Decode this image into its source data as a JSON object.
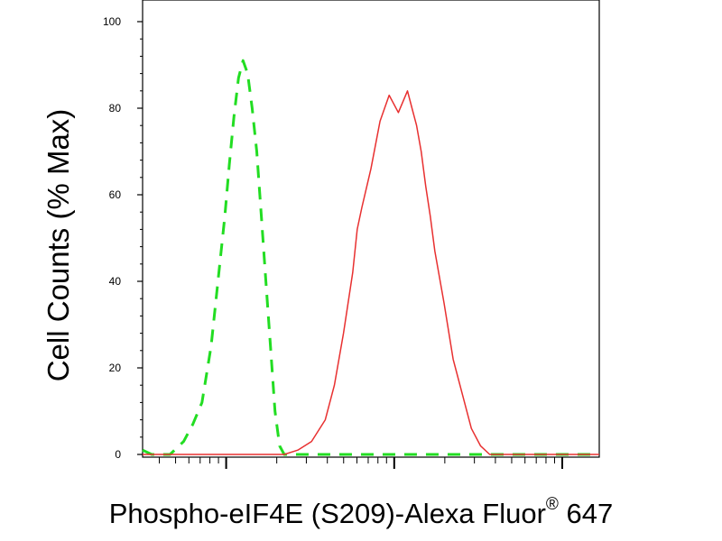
{
  "chart_data": {
    "type": "line",
    "title": "",
    "ylabel": "Cell Counts (% Max)",
    "xlabel": {
      "text": "Phospho-eIF4E (S209)-Alexa Fluor",
      "superscript": "®",
      "suffix": " 647"
    },
    "ylim": [
      0,
      100
    ],
    "yticks": [
      "0",
      "20",
      "40",
      "60",
      "80",
      "100"
    ],
    "xscale": "log",
    "xlim": [
      0,
      1
    ],
    "grid": false,
    "series": [
      {
        "color": "#22dd22",
        "dashed": true,
        "x": [
          0.0,
          0.02,
          0.06,
          0.09,
          0.11,
          0.13,
          0.15,
          0.165,
          0.18,
          0.19,
          0.2,
          0.21,
          0.215,
          0.22,
          0.23,
          0.24,
          0.25,
          0.26,
          0.27,
          0.28,
          0.29,
          0.3,
          0.31,
          0.33,
          0.36,
          0.42,
          0.5,
          0.6,
          0.7,
          0.8,
          0.9,
          1.0
        ],
        "values": [
          1,
          0,
          0,
          3,
          7,
          12,
          25,
          40,
          55,
          67,
          78,
          87,
          89,
          91,
          88,
          80,
          70,
          55,
          40,
          25,
          10,
          2,
          0,
          0,
          0,
          0,
          0,
          0,
          0,
          0,
          0,
          0
        ]
      },
      {
        "color": "#e83030",
        "dashed": false,
        "x": [
          0.0,
          0.2,
          0.31,
          0.34,
          0.37,
          0.4,
          0.42,
          0.44,
          0.46,
          0.47,
          0.48,
          0.5,
          0.52,
          0.54,
          0.56,
          0.58,
          0.59,
          0.6,
          0.61,
          0.62,
          0.63,
          0.64,
          0.66,
          0.68,
          0.7,
          0.72,
          0.74,
          0.76,
          0.78,
          0.8,
          0.82,
          0.86,
          0.9,
          1.0
        ],
        "values": [
          0,
          0,
          0,
          1,
          3,
          8,
          16,
          28,
          42,
          52,
          57,
          66,
          77,
          83,
          79,
          84,
          80,
          76,
          70,
          62,
          55,
          47,
          35,
          22,
          14,
          6,
          2,
          0,
          0,
          0,
          0,
          0,
          0,
          0
        ]
      }
    ]
  }
}
